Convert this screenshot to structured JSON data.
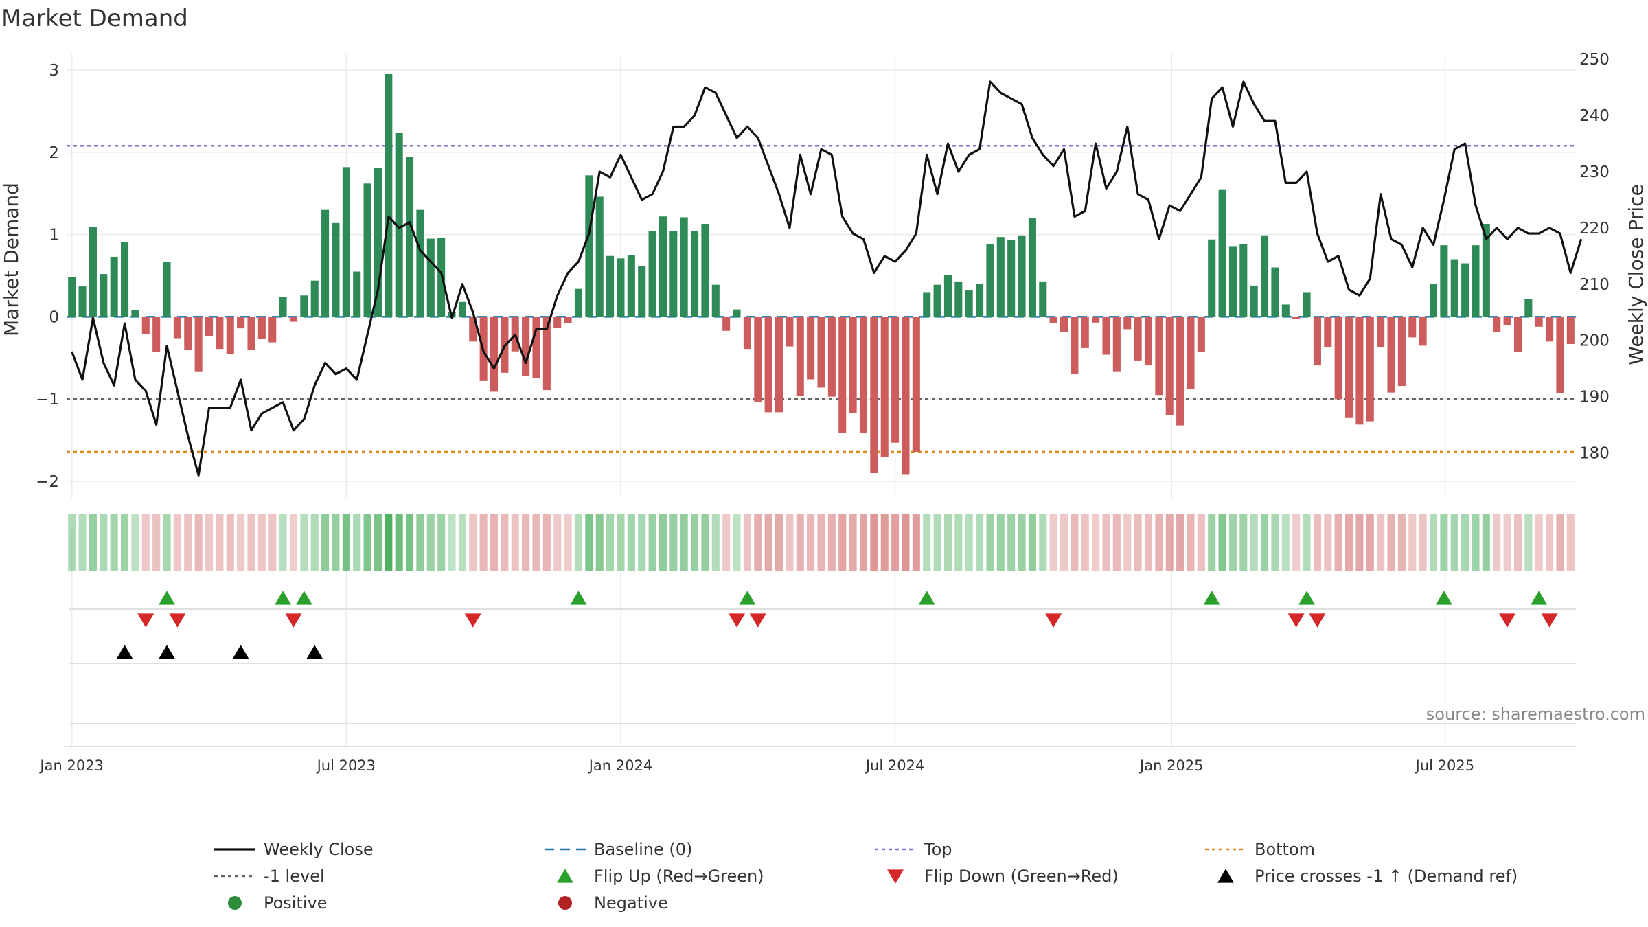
{
  "chart_data": {
    "type": "bar",
    "title": "Market Demand",
    "ylabel_left": "Market Demand",
    "ylabel_right": "Weekly Close Price",
    "source": "source: sharemaestro.com",
    "left_axis": {
      "ylim": [
        -2.2,
        3.2
      ],
      "ticks": [
        -2,
        -1,
        0,
        1,
        2,
        3
      ],
      "tick_labels": [
        "−2",
        "−1",
        "0",
        "1",
        "2",
        "3"
      ]
    },
    "right_axis": {
      "ylim": [
        172,
        251
      ],
      "ticks": [
        180,
        190,
        200,
        210,
        220,
        230,
        240,
        250
      ],
      "tick_labels": [
        "180",
        "190",
        "200",
        "210",
        "220",
        "230",
        "240",
        "250"
      ]
    },
    "x_ticks": [
      {
        "week": 0.5,
        "label": "Jan 2023"
      },
      {
        "week": 26.5,
        "label": "Jul 2023"
      },
      {
        "week": 52.5,
        "label": "Jan 2024"
      },
      {
        "week": 78.5,
        "label": "Jul 2024"
      },
      {
        "week": 104.7,
        "label": "Jan 2025"
      },
      {
        "week": 130.6,
        "label": "Jul 2025"
      }
    ],
    "reference_lines": {
      "top": 2.08,
      "minus_one": -1,
      "bottom": -1.64,
      "baseline": 0
    },
    "series": [
      {
        "name": "Market Demand",
        "values": [
          0.48,
          0.37,
          1.09,
          0.52,
          0.73,
          0.91,
          0.08,
          -0.21,
          -0.43,
          0.67,
          -0.26,
          -0.4,
          -0.67,
          -0.23,
          -0.39,
          -0.45,
          -0.14,
          -0.4,
          -0.27,
          -0.31,
          0.24,
          -0.06,
          0.26,
          0.44,
          1.3,
          1.14,
          1.82,
          0.55,
          1.62,
          1.81,
          2.95,
          2.24,
          1.94,
          1.3,
          0.95,
          0.96,
          0.06,
          0.18,
          -0.3,
          -0.78,
          -0.91,
          -0.68,
          -0.42,
          -0.72,
          -0.74,
          -0.89,
          -0.13,
          -0.08,
          0.34,
          1.72,
          1.46,
          0.74,
          0.71,
          0.75,
          0.62,
          1.04,
          1.22,
          1.04,
          1.21,
          1.04,
          1.13,
          0.39,
          -0.17,
          0.09,
          -0.39,
          -1.04,
          -1.16,
          -1.16,
          -0.36,
          -0.96,
          -0.76,
          -0.86,
          -0.97,
          -1.41,
          -1.17,
          -1.41,
          -1.9,
          -1.7,
          -1.53,
          -1.92,
          -1.64,
          0.3,
          0.39,
          0.51,
          0.43,
          0.32,
          0.4,
          0.88,
          0.97,
          0.93,
          0.99,
          1.2,
          0.43,
          -0.08,
          -0.18,
          -0.69,
          -0.38,
          -0.07,
          -0.46,
          -0.67,
          -0.15,
          -0.53,
          -0.59,
          -0.95,
          -1.19,
          -1.32,
          -0.88,
          -0.43,
          0.94,
          1.55,
          0.86,
          0.88,
          0.38,
          0.99,
          0.6,
          0.15,
          -0.03,
          0.3,
          -0.59,
          -0.37,
          -1.0,
          -1.23,
          -1.31,
          -1.27,
          -0.37,
          -0.92,
          -0.84,
          -0.25,
          -0.35,
          0.4,
          0.87,
          0.7,
          0.65,
          0.87,
          1.13,
          -0.18,
          -0.1,
          -0.43,
          0.22,
          -0.12,
          -0.3,
          -0.93,
          -0.33
        ]
      },
      {
        "name": "Weekly Close",
        "values": [
          198,
          193,
          204,
          196,
          192,
          203,
          193,
          191,
          185,
          199,
          191,
          183,
          176,
          188,
          188,
          188,
          193,
          184,
          187,
          188,
          189,
          184,
          186,
          192,
          196,
          194,
          195,
          193,
          201,
          209,
          222,
          220,
          221,
          216,
          214,
          212,
          204,
          210,
          205,
          198,
          195,
          199,
          201,
          196,
          202,
          202,
          208,
          212,
          214,
          219,
          230,
          229,
          233,
          229,
          225,
          226,
          230,
          238,
          238,
          240,
          245,
          244,
          240,
          236,
          238,
          236,
          231,
          226,
          220,
          233,
          226,
          234,
          233,
          222,
          219,
          218,
          212,
          215,
          214,
          216,
          219,
          233,
          226,
          235,
          230,
          233,
          234,
          246,
          244,
          243,
          242,
          236,
          233,
          231,
          234,
          222,
          223,
          235,
          227,
          230,
          238,
          226,
          225,
          218,
          224,
          223,
          226,
          229,
          243,
          245,
          238,
          246,
          242,
          239,
          239,
          228,
          228,
          230,
          219,
          214,
          215,
          209,
          208,
          211,
          226,
          218,
          217,
          213,
          220,
          217,
          225,
          234,
          235,
          224,
          218,
          220,
          218,
          220,
          219,
          219,
          220,
          219,
          212,
          218
        ]
      }
    ],
    "flip_up_weeks": [
      9,
      20,
      22,
      48,
      64,
      81,
      108,
      117,
      130,
      139
    ],
    "flip_down_weeks": [
      7,
      10,
      21,
      38,
      63,
      65,
      93,
      116,
      118,
      136,
      140
    ],
    "price_cross_weeks": [
      5,
      9,
      16,
      23
    ],
    "heatmap_strip": {
      "description": "per-week demand intensity strip (green positive, red negative)"
    },
    "legend": [
      {
        "label": "Weekly Close",
        "style": "line",
        "color": "#111111"
      },
      {
        "label": "Baseline (0)",
        "style": "dash",
        "color": "#1f77b4"
      },
      {
        "label": "Top",
        "style": "dot",
        "color": "#7b73d6"
      },
      {
        "label": "Bottom",
        "style": "dot",
        "color": "#e08a1e"
      },
      {
        "label": "-1 level",
        "style": "dot",
        "color": "#666666"
      },
      {
        "label": "Flip Up (Red→Green)",
        "style": "tri-up",
        "color": "#2ca02c"
      },
      {
        "label": "Flip Down (Green→Red)",
        "style": "tri-down",
        "color": "#d62728"
      },
      {
        "label": "Price crosses -1 ↑ (Demand ref)",
        "style": "tri-up",
        "color": "#000000"
      },
      {
        "label": "Positive",
        "style": "circle",
        "color": "#2e8b3a"
      },
      {
        "label": "Negative",
        "style": "circle",
        "color": "#b22222"
      }
    ],
    "colors": {
      "positive": "#2e8b57",
      "negative": "#cd5c5c",
      "price": "#111111"
    }
  }
}
